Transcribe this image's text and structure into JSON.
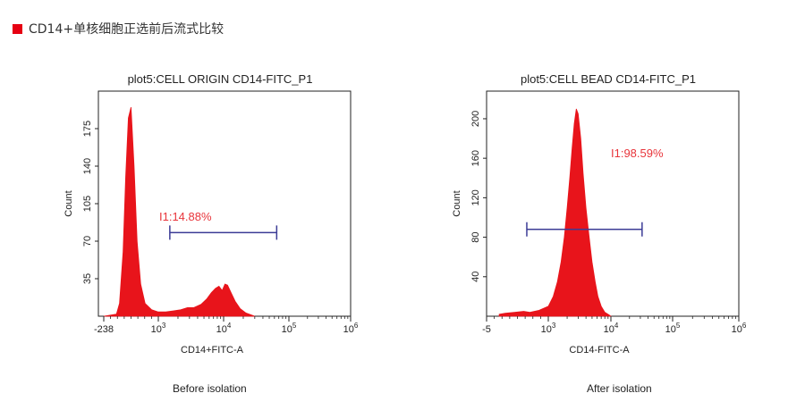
{
  "header": {
    "title": "CD14+单核细胞正选前后流式比较"
  },
  "accent_color": "#e60012",
  "histogram_color": "#e8141b",
  "gate_color": "#3c3c96",
  "chart_data": [
    {
      "type": "area",
      "title": "plot5:CELL ORIGIN CD14-FITC_P1",
      "xlabel": "CD14+FITC-A",
      "ylabel": "Count",
      "x_scale": "log (biexponential)",
      "x_ticks": [
        {
          "label": "-238",
          "sup": ""
        },
        {
          "label": "10",
          "sup": "3"
        },
        {
          "label": "10",
          "sup": "4"
        },
        {
          "label": "10",
          "sup": "5"
        },
        {
          "label": "10",
          "sup": "6"
        }
      ],
      "y_ticks": [
        "35",
        "70",
        "105",
        "140",
        "175"
      ],
      "ylim": [
        0,
        210
      ],
      "gate": {
        "label": "I1:14.88%",
        "x_range": [
          1500,
          65000
        ],
        "y": 78
      },
      "series": [
        {
          "x": [
            -238,
            50,
            120,
            200,
            260,
            320,
            380,
            450,
            520,
            600,
            700,
            850,
            1000,
            1300,
            1700,
            2200,
            2800,
            3500,
            4500,
            5500,
            6500,
            7500,
            8500,
            9500,
            10500,
            11500,
            13000,
            15000,
            18000,
            22000,
            30000
          ],
          "y": [
            0,
            2,
            12,
            60,
            130,
            185,
            195,
            140,
            70,
            30,
            12,
            6,
            4,
            4,
            5,
            6,
            8,
            8,
            11,
            16,
            22,
            26,
            28,
            24,
            30,
            29,
            22,
            14,
            7,
            3,
            0
          ]
        }
      ],
      "caption": "Before isolation"
    },
    {
      "type": "area",
      "title": "plot5:CELL BEAD CD14-FITC_P1",
      "xlabel": "CD14-FITC-A",
      "ylabel": "Count",
      "x_scale": "log (biexponential)",
      "x_ticks": [
        {
          "label": "-5",
          "sup": ""
        },
        {
          "label": "10",
          "sup": "3"
        },
        {
          "label": "10",
          "sup": "4"
        },
        {
          "label": "10",
          "sup": "5"
        },
        {
          "label": "10",
          "sup": "6"
        }
      ],
      "y_ticks": [
        "40",
        "80",
        "120",
        "160",
        "200"
      ],
      "ylim": [
        0,
        228
      ],
      "gate": {
        "label": "I1:98.59%",
        "x_range": [
          650,
          32000
        ],
        "y": 88
      },
      "series": [
        {
          "x": [
            200,
            300,
            450,
            600,
            700,
            850,
            1000,
            1200,
            1400,
            1600,
            1800,
            2000,
            2200,
            2400,
            2600,
            2800,
            3000,
            3300,
            3600,
            4000,
            4500,
            5000,
            5600,
            6200,
            7000,
            8000,
            9000,
            10000
          ],
          "y": [
            2,
            3,
            4,
            5,
            4,
            6,
            10,
            20,
            35,
            55,
            80,
            110,
            140,
            170,
            195,
            210,
            205,
            180,
            145,
            110,
            80,
            55,
            35,
            20,
            10,
            4,
            2,
            0
          ]
        }
      ],
      "caption": "After isolation"
    }
  ]
}
